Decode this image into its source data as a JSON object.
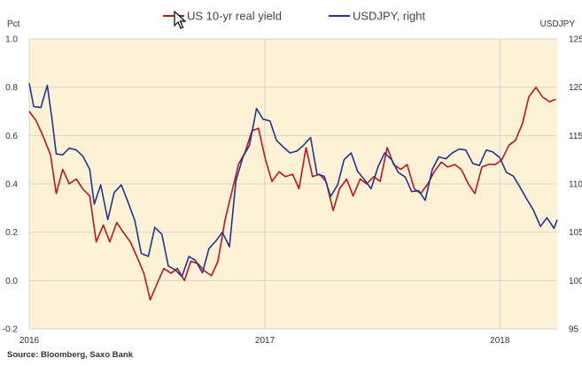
{
  "chart_data": {
    "type": "line",
    "title": "",
    "source": "Source: Bloomberg, Saxo Bank",
    "left_axis": {
      "label": "Pct",
      "min": -0.2,
      "max": 1.0,
      "ticks": [
        "-0.2",
        "0.0",
        "0.2",
        "0.4",
        "0.6",
        "0.8",
        "1.0"
      ]
    },
    "right_axis": {
      "label": "USDJPY",
      "min": 95,
      "max": 125,
      "ticks": [
        "95",
        "100",
        "105",
        "110",
        "115",
        "120",
        "125"
      ]
    },
    "x_axis": {
      "start": "2016-01-01",
      "end": "2018-03-31",
      "ticks": [
        {
          "date": "2016-01-01",
          "label": "2016"
        },
        {
          "date": "2017-01-01",
          "label": "2017"
        },
        {
          "date": "2018-01-01",
          "label": "2018"
        }
      ]
    },
    "legend_position": "top-center",
    "grid": true,
    "background_color": "#fdf2d6",
    "series": [
      {
        "name": "US 10-yr real yield",
        "axis": "left",
        "color": "#c0141e",
        "points": [
          [
            "2016-01-01",
            0.7
          ],
          [
            "2016-01-12",
            0.66
          ],
          [
            "2016-01-22",
            0.6
          ],
          [
            "2016-02-03",
            0.52
          ],
          [
            "2016-02-12",
            0.36
          ],
          [
            "2016-02-22",
            0.46
          ],
          [
            "2016-03-03",
            0.4
          ],
          [
            "2016-03-14",
            0.42
          ],
          [
            "2016-03-24",
            0.38
          ],
          [
            "2016-04-04",
            0.35
          ],
          [
            "2016-04-14",
            0.16
          ],
          [
            "2016-04-25",
            0.23
          ],
          [
            "2016-05-05",
            0.16
          ],
          [
            "2016-05-16",
            0.24
          ],
          [
            "2016-05-26",
            0.2
          ],
          [
            "2016-06-06",
            0.16
          ],
          [
            "2016-06-16",
            0.1
          ],
          [
            "2016-06-27",
            0.03
          ],
          [
            "2016-07-07",
            -0.08
          ],
          [
            "2016-07-18",
            -0.01
          ],
          [
            "2016-07-28",
            0.05
          ],
          [
            "2016-08-08",
            0.03
          ],
          [
            "2016-08-18",
            0.05
          ],
          [
            "2016-08-29",
            0.0
          ],
          [
            "2016-09-08",
            0.08
          ],
          [
            "2016-09-19",
            0.07
          ],
          [
            "2016-09-29",
            0.04
          ],
          [
            "2016-10-10",
            0.02
          ],
          [
            "2016-10-20",
            0.08
          ],
          [
            "2016-10-31",
            0.25
          ],
          [
            "2016-11-10",
            0.36
          ],
          [
            "2016-11-21",
            0.48
          ],
          [
            "2016-12-01",
            0.53
          ],
          [
            "2016-12-12",
            0.62
          ],
          [
            "2016-12-22",
            0.63
          ],
          [
            "2017-01-02",
            0.5
          ],
          [
            "2017-01-12",
            0.41
          ],
          [
            "2017-01-23",
            0.45
          ],
          [
            "2017-02-02",
            0.43
          ],
          [
            "2017-02-13",
            0.44
          ],
          [
            "2017-02-23",
            0.38
          ],
          [
            "2017-03-06",
            0.55
          ],
          [
            "2017-03-16",
            0.43
          ],
          [
            "2017-03-27",
            0.44
          ],
          [
            "2017-04-06",
            0.41
          ],
          [
            "2017-04-17",
            0.29
          ],
          [
            "2017-04-27",
            0.38
          ],
          [
            "2017-05-08",
            0.42
          ],
          [
            "2017-05-18",
            0.35
          ],
          [
            "2017-05-29",
            0.42
          ],
          [
            "2017-06-08",
            0.4
          ],
          [
            "2017-06-19",
            0.43
          ],
          [
            "2017-06-29",
            0.41
          ],
          [
            "2017-07-10",
            0.55
          ],
          [
            "2017-07-20",
            0.48
          ],
          [
            "2017-07-31",
            0.46
          ],
          [
            "2017-08-10",
            0.48
          ],
          [
            "2017-08-21",
            0.38
          ],
          [
            "2017-08-31",
            0.36
          ],
          [
            "2017-09-11",
            0.4
          ],
          [
            "2017-09-21",
            0.45
          ],
          [
            "2017-10-02",
            0.49
          ],
          [
            "2017-10-12",
            0.47
          ],
          [
            "2017-10-23",
            0.48
          ],
          [
            "2017-11-02",
            0.46
          ],
          [
            "2017-11-13",
            0.4
          ],
          [
            "2017-11-23",
            0.36
          ],
          [
            "2017-12-04",
            0.47
          ],
          [
            "2017-12-14",
            0.48
          ],
          [
            "2017-12-25",
            0.48
          ],
          [
            "2018-01-04",
            0.5
          ],
          [
            "2018-01-15",
            0.56
          ],
          [
            "2018-01-25",
            0.58
          ],
          [
            "2018-02-05",
            0.65
          ],
          [
            "2018-02-15",
            0.76
          ],
          [
            "2018-02-26",
            0.8
          ],
          [
            "2018-03-08",
            0.76
          ],
          [
            "2018-03-19",
            0.74
          ],
          [
            "2018-03-29",
            0.75
          ]
        ]
      },
      {
        "name": "USDJPY, right",
        "axis": "right",
        "color": "#1f3595",
        "points": [
          [
            "2016-01-01",
            120.4
          ],
          [
            "2016-01-08",
            118.0
          ],
          [
            "2016-01-19",
            117.9
          ],
          [
            "2016-01-29",
            120.2
          ],
          [
            "2016-02-05",
            116.9
          ],
          [
            "2016-02-12",
            113.1
          ],
          [
            "2016-02-22",
            113.0
          ],
          [
            "2016-03-03",
            113.7
          ],
          [
            "2016-03-14",
            113.5
          ],
          [
            "2016-03-24",
            112.9
          ],
          [
            "2016-04-04",
            111.5
          ],
          [
            "2016-04-11",
            107.9
          ],
          [
            "2016-04-21",
            109.9
          ],
          [
            "2016-05-02",
            106.3
          ],
          [
            "2016-05-12",
            109.1
          ],
          [
            "2016-05-23",
            109.9
          ],
          [
            "2016-06-02",
            108.2
          ],
          [
            "2016-06-13",
            106.2
          ],
          [
            "2016-06-23",
            102.8
          ],
          [
            "2016-07-04",
            102.5
          ],
          [
            "2016-07-14",
            105.5
          ],
          [
            "2016-07-25",
            104.8
          ],
          [
            "2016-08-04",
            101.5
          ],
          [
            "2016-08-15",
            101.1
          ],
          [
            "2016-08-25",
            100.4
          ],
          [
            "2016-09-05",
            102.5
          ],
          [
            "2016-09-15",
            102.1
          ],
          [
            "2016-09-26",
            100.8
          ],
          [
            "2016-10-06",
            103.3
          ],
          [
            "2016-10-17",
            104.1
          ],
          [
            "2016-10-27",
            105.0
          ],
          [
            "2016-11-07",
            103.5
          ],
          [
            "2016-11-17",
            110.3
          ],
          [
            "2016-11-28",
            112.8
          ],
          [
            "2016-12-08",
            114.0
          ],
          [
            "2016-12-19",
            117.8
          ],
          [
            "2016-12-29",
            116.7
          ],
          [
            "2017-01-09",
            116.5
          ],
          [
            "2017-01-19",
            114.5
          ],
          [
            "2017-01-30",
            113.8
          ],
          [
            "2017-02-09",
            113.2
          ],
          [
            "2017-02-20",
            113.4
          ],
          [
            "2017-03-02",
            114.0
          ],
          [
            "2017-03-13",
            114.8
          ],
          [
            "2017-03-23",
            111.0
          ],
          [
            "2017-04-03",
            110.8
          ],
          [
            "2017-04-13",
            108.7
          ],
          [
            "2017-04-24",
            109.9
          ],
          [
            "2017-05-04",
            112.5
          ],
          [
            "2017-05-15",
            113.2
          ],
          [
            "2017-05-25",
            111.3
          ],
          [
            "2017-06-05",
            110.4
          ],
          [
            "2017-06-15",
            109.5
          ],
          [
            "2017-06-26",
            111.8
          ],
          [
            "2017-07-06",
            113.2
          ],
          [
            "2017-07-17",
            112.5
          ],
          [
            "2017-07-27",
            111.2
          ],
          [
            "2017-08-07",
            110.7
          ],
          [
            "2017-08-17",
            109.2
          ],
          [
            "2017-08-28",
            109.3
          ],
          [
            "2017-09-07",
            108.3
          ],
          [
            "2017-09-18",
            111.5
          ],
          [
            "2017-09-28",
            112.8
          ],
          [
            "2017-10-09",
            112.6
          ],
          [
            "2017-10-19",
            113.2
          ],
          [
            "2017-10-30",
            113.6
          ],
          [
            "2017-11-09",
            113.5
          ],
          [
            "2017-11-20",
            112.1
          ],
          [
            "2017-11-30",
            111.9
          ],
          [
            "2017-12-11",
            113.5
          ],
          [
            "2017-12-21",
            113.3
          ],
          [
            "2018-01-01",
            112.7
          ],
          [
            "2018-01-11",
            111.2
          ],
          [
            "2018-01-22",
            110.8
          ],
          [
            "2018-02-01",
            109.7
          ],
          [
            "2018-02-12",
            108.4
          ],
          [
            "2018-02-22",
            107.3
          ],
          [
            "2018-03-05",
            105.6
          ],
          [
            "2018-03-15",
            106.5
          ],
          [
            "2018-03-26",
            105.4
          ],
          [
            "2018-03-31",
            106.3
          ]
        ]
      }
    ]
  }
}
